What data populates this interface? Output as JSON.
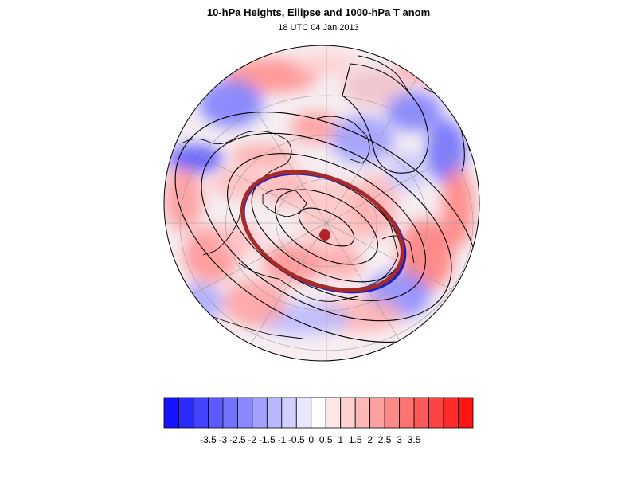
{
  "header": {
    "title": "10-hPa Heights, Ellipse and 1000-hPa T anom",
    "subtitle": "18 UTC 04 Jan 2013"
  },
  "map": {
    "projection": "orthographic-north-polar",
    "contour_color": "#000000",
    "ellipse_color": "#a52a2a",
    "ellipse_edge_color": "#1e1ec8",
    "center_marker_color": "#b22222"
  },
  "colorbar": {
    "colors": [
      "#1414ff",
      "#2b2bff",
      "#4343ff",
      "#5a5aff",
      "#7272ff",
      "#8989ff",
      "#a1a1ff",
      "#b8b8ff",
      "#d0d0ff",
      "#e7e7ff",
      "#ffffff",
      "#ffe7e7",
      "#ffd0d0",
      "#ffb8b8",
      "#ffa1a1",
      "#ff8989",
      "#ff7272",
      "#ff5a5a",
      "#ff4343",
      "#ff2b2b",
      "#ff1414"
    ],
    "tick_labels": [
      "-3.5",
      "-3",
      "-2.5",
      "-2",
      "-1.5",
      "-1",
      "-0.5",
      "0",
      "0.5",
      "1",
      "1.5",
      "2",
      "2.5",
      "3",
      "3.5"
    ]
  }
}
